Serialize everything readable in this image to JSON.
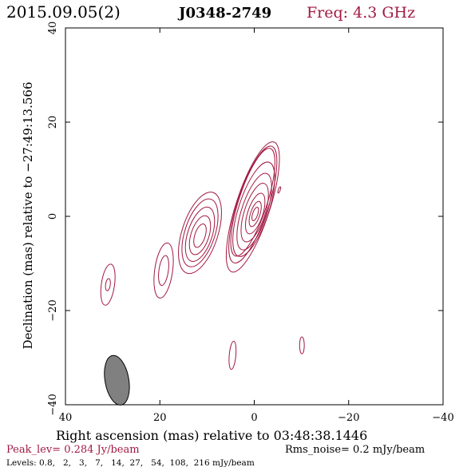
{
  "header": {
    "epoch": "2015.09.05(2)",
    "source": "J0348-2749",
    "freq": "Freq: 4.3 GHz"
  },
  "colors": {
    "contour": "#a21943",
    "text_accent": "#a21943",
    "axis": "#000000",
    "beam_fill": "#808080"
  },
  "footer": {
    "peak": "Peak_lev=  0.284 Jy/beam",
    "rms": "Rms_noise=  0.2 mJy/beam",
    "levels": "Levels: 0.8,   2,   3,   7,   14,  27,   54,  108,  216 mJy/beam"
  },
  "chart_data": {
    "type": "contour",
    "xlabel": "Right ascension (mas) relative to 03:48:38.1446",
    "ylabel": "Declination (mas) relative to −27:49:13.566",
    "xlim": [
      40,
      -40
    ],
    "ylim": [
      -40,
      40
    ],
    "x_ticks": [
      40,
      20,
      0,
      -20,
      -40
    ],
    "y_ticks": [
      -40,
      -20,
      0,
      20,
      40
    ],
    "x_tick_labels": [
      "40",
      "20",
      "0",
      "−20",
      "−40"
    ],
    "y_tick_labels": [
      "−40",
      "−20",
      "0",
      "20",
      "40"
    ],
    "levels_mJy_per_beam": [
      0.8,
      2,
      3,
      7,
      14,
      27,
      54,
      108,
      216
    ],
    "peak_Jy_per_beam": 0.284,
    "rms_mJy_per_beam": 0.2,
    "beam": {
      "x": 29.1,
      "y": -34.8,
      "major_mas": 8.6,
      "minor_mas": 2.4,
      "pa_deg": 10
    },
    "components": [
      {
        "name": "core",
        "x": -0.2,
        "y": 0.5,
        "contours": [
          {
            "rx": 3.0,
            "ry": 12.0,
            "rot": 18,
            "dx": 0.5,
            "dy": 2.5
          },
          {
            "rx": 3.3,
            "ry": 13.0,
            "rot": 18,
            "dx": 0.5,
            "dy": 2.0
          },
          {
            "rx": 3.6,
            "ry": 14.5,
            "rot": 18,
            "dx": 0.5,
            "dy": 1.5
          },
          {
            "rx": 3.2,
            "ry": 10.5,
            "rot": 18,
            "dx": 0.3,
            "dy": 1.0
          },
          {
            "rx": 2.7,
            "ry": 8.5,
            "rot": 18,
            "dx": 0.2,
            "dy": 0.5
          },
          {
            "rx": 2.2,
            "ry": 6.5,
            "rot": 18,
            "dx": 0.1,
            "dy": 0.3
          },
          {
            "rx": 1.6,
            "ry": 4.5,
            "rot": 18,
            "dx": 0.0,
            "dy": 0.1
          },
          {
            "rx": 1.0,
            "ry": 2.8,
            "rot": 18,
            "dx": 0.0,
            "dy": 0.0
          },
          {
            "rx": 0.55,
            "ry": 1.5,
            "rot": 18,
            "dx": 0.0,
            "dy": 0.0
          }
        ]
      },
      {
        "name": "knot-1",
        "x": 11.5,
        "y": -3.5,
        "contours": [
          {
            "rx": 3.8,
            "ry": 9.0,
            "rot": 18,
            "dx": 0.0,
            "dy": 0.0
          },
          {
            "rx": 3.2,
            "ry": 7.5,
            "rot": 18,
            "dx": 0.0,
            "dy": 0.0
          },
          {
            "rx": 2.6,
            "ry": 6.0,
            "rot": 18,
            "dx": 0.0,
            "dy": -0.3
          },
          {
            "rx": 1.9,
            "ry": 4.3,
            "rot": 18,
            "dx": 0.0,
            "dy": -0.5
          },
          {
            "rx": 1.1,
            "ry": 2.6,
            "rot": 18,
            "dx": 0.0,
            "dy": -0.6
          }
        ]
      },
      {
        "name": "knot-2",
        "x": 19.2,
        "y": -11.5,
        "contours": [
          {
            "rx": 1.9,
            "ry": 5.9,
            "rot": 8,
            "dx": 0.0,
            "dy": 0.0
          },
          {
            "rx": 1.0,
            "ry": 3.2,
            "rot": 8,
            "dx": 0.0,
            "dy": 0.0
          }
        ]
      },
      {
        "name": "knot-3",
        "x": 31.0,
        "y": -14.5,
        "contours": [
          {
            "rx": 1.4,
            "ry": 4.4,
            "rot": 8,
            "dx": 0.0,
            "dy": 0.0
          },
          {
            "rx": 0.5,
            "ry": 1.3,
            "rot": 8,
            "dx": 0.0,
            "dy": 0.0
          }
        ]
      },
      {
        "name": "blob-a",
        "x": 4.6,
        "y": -29.5,
        "contours": [
          {
            "rx": 0.7,
            "ry": 3.0,
            "rot": 5,
            "dx": 0.0,
            "dy": 0.0
          }
        ]
      },
      {
        "name": "blob-b",
        "x": -10.1,
        "y": -27.4,
        "contours": [
          {
            "rx": 0.5,
            "ry": 1.8,
            "rot": 0,
            "dx": 0.0,
            "dy": 0.0
          }
        ]
      },
      {
        "name": "blob-c",
        "x": -5.3,
        "y": 5.6,
        "contours": [
          {
            "rx": 0.2,
            "ry": 0.7,
            "rot": 20,
            "dx": 0.0,
            "dy": 0.0
          }
        ]
      }
    ]
  }
}
